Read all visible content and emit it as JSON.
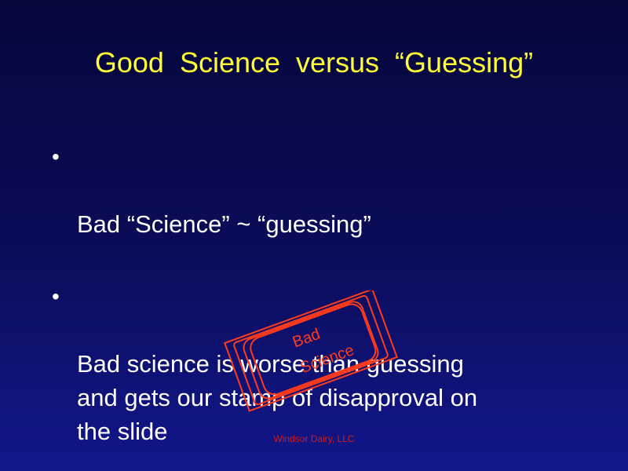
{
  "slide": {
    "title": "Good  Science  versus  “Guessing”",
    "bullet_symbol": "•",
    "bullets": [
      "Bad “Science”  ~  “guessing”",
      "Bad science is worse than guessing\nand gets our stamp of disapproval on\nthe slide"
    ],
    "stamp": {
      "line1": "Bad",
      "line2": "Science",
      "color": "#ff3b1a"
    },
    "footer": "Windsor Dairy, LLC"
  }
}
